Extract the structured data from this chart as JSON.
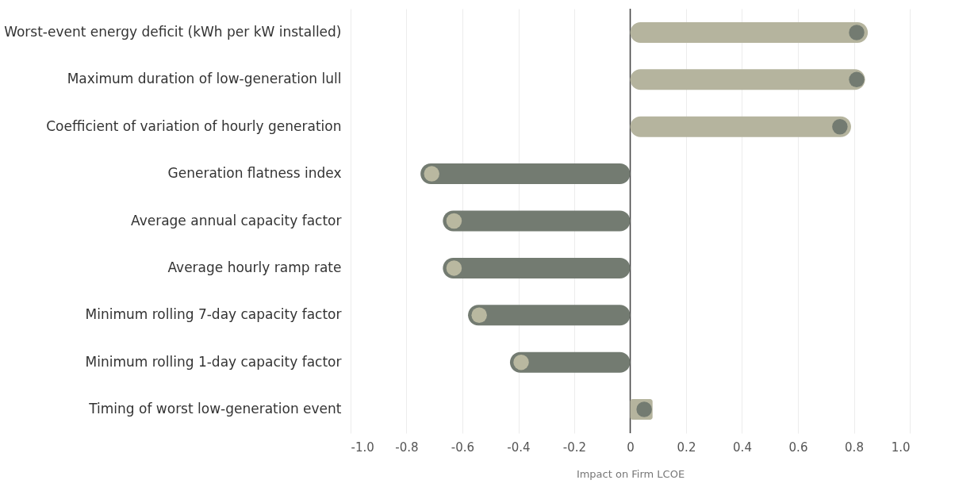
{
  "chart_data": {
    "type": "bar",
    "orientation": "horizontal",
    "xlabel": "Impact on Firm LCOE",
    "categories": [
      "Worst-event energy deficit (kWh per kW installed)",
      "Maximum duration of low-generation lull",
      "Coefficient of variation of hourly generation",
      "Generation flatness index",
      "Average annual capacity factor",
      "Average hourly ramp rate",
      "Minimum rolling 7-day capacity factor",
      "Minimum rolling 1-day capacity factor",
      "Timing of worst low-generation event"
    ],
    "series": [
      {
        "values": [
          0.85,
          0.84,
          0.79,
          -0.75,
          -0.67,
          -0.67,
          -0.58,
          -0.43,
          0.08
        ],
        "colors": [
          "#b5b49e",
          "#b5b49e",
          "#b5b49e",
          "#737b71",
          "#737b71",
          "#737b71",
          "#737b71",
          "#737b71",
          "#b5b49e"
        ]
      },
      {
        "type": "scatter",
        "values": [
          0.81,
          0.81,
          0.75,
          -0.71,
          -0.63,
          -0.63,
          -0.54,
          -0.39,
          0.05
        ],
        "colors": [
          "#737b71",
          "#737b71",
          "#737b71",
          "#b9b8a0",
          "#b9b8a0",
          "#b9b8a0",
          "#b9b8a0",
          "#b9b8a0",
          "#737b71"
        ]
      }
    ],
    "marker": "circle",
    "xlim": [
      -1,
      1
    ],
    "xticks": [
      {
        "value": -1,
        "label": "-1.0"
      },
      -0.8,
      -0.6,
      -0.4,
      -0.2,
      0,
      0.2,
      0.4,
      0.6,
      0.8,
      {
        "value": 1,
        "label": "1.0"
      }
    ],
    "grid": "x",
    "ref_lines": [
      {
        "axis": "x",
        "value": 0,
        "color": "#444444"
      }
    ]
  }
}
